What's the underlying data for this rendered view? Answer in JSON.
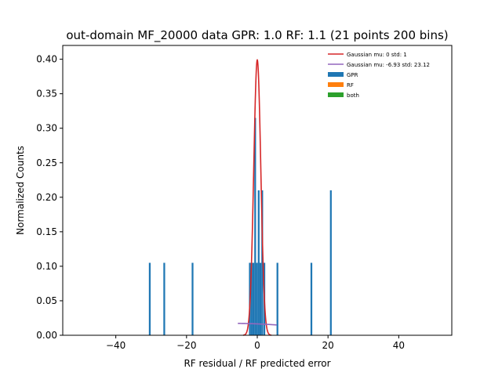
{
  "chart_data": {
    "type": "bar",
    "title": "out-domain MF_20000 data GPR: 1.0 RF: 1.1 (21 points 200 bins)",
    "xlabel": "RF residual / RF predicted error",
    "ylabel": "Normalized Counts",
    "xlim": [
      -55,
      55
    ],
    "ylim": [
      0,
      0.42
    ],
    "xticks": [
      -40,
      -20,
      0,
      20,
      40
    ],
    "xtick_labels": [
      "−40",
      "−20",
      "0",
      "20",
      "40"
    ],
    "yticks": [
      0.0,
      0.05,
      0.1,
      0.15,
      0.2,
      0.25,
      0.3,
      0.35,
      0.4
    ],
    "ytick_labels": [
      "0.00",
      "0.05",
      "0.10",
      "0.15",
      "0.20",
      "0.25",
      "0.30",
      "0.35",
      "0.40"
    ],
    "grid": false,
    "legend_placement": "top-right",
    "bin_width": 0.5,
    "histograms": [
      {
        "name": "GPR",
        "color": "#1f77b4",
        "bins": [
          {
            "x": -30.4,
            "y": 0.105
          },
          {
            "x": -26.3,
            "y": 0.105
          },
          {
            "x": -18.3,
            "y": 0.105
          },
          {
            "x": -2.1,
            "y": 0.105
          },
          {
            "x": -1.6,
            "y": 0.105
          },
          {
            "x": -1.1,
            "y": 0.105
          },
          {
            "x": -0.6,
            "y": 0.315
          },
          {
            "x": -0.1,
            "y": 0.105
          },
          {
            "x": 0.4,
            "y": 0.21
          },
          {
            "x": 0.9,
            "y": 0.105
          },
          {
            "x": 1.4,
            "y": 0.21
          },
          {
            "x": 2.0,
            "y": 0.105
          },
          {
            "x": 5.7,
            "y": 0.105
          },
          {
            "x": 15.3,
            "y": 0.105
          },
          {
            "x": 20.8,
            "y": 0.21
          }
        ]
      },
      {
        "name": "RF",
        "color": "#ff7f0e",
        "bins": []
      },
      {
        "name": "both",
        "color": "#2ca02c",
        "bins": []
      }
    ],
    "curves": [
      {
        "name": "Gaussian mu: 0 std: 1",
        "color": "#d62728",
        "mu": 0,
        "sigma": 1,
        "x_range": [
          -4,
          4
        ]
      },
      {
        "name": "Gaussian mu: -6.93 std: 23.12",
        "color": "#9467bd",
        "mu": -6.93,
        "sigma": 23.12,
        "x_range": [
          -5.5,
          5.5
        ]
      }
    ]
  }
}
